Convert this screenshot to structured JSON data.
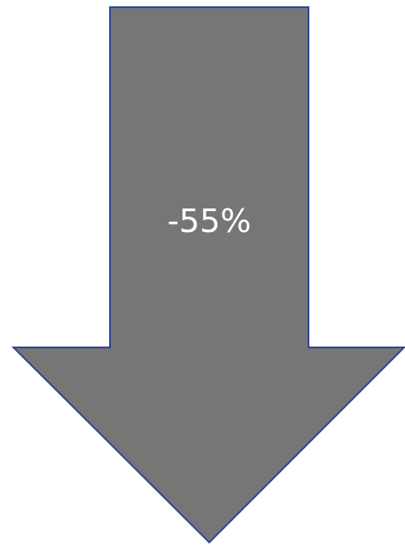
{
  "arrow": {
    "label": "-55%",
    "icon": "down-arrow-icon",
    "fill_color": "#767676",
    "stroke_color": "#2f4b8f",
    "text_color": "#ffffff"
  }
}
